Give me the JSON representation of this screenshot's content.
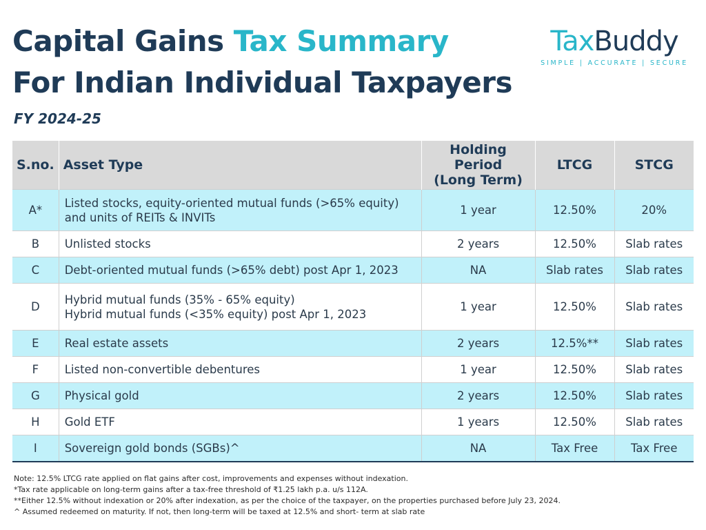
{
  "header": {
    "title_part1": "Capital Gains ",
    "title_accent": "Tax Summary",
    "title_line2": "For Indian Individual Taxpayers",
    "fiscal_year": "FY 2024-25"
  },
  "logo": {
    "brand_prefix": "Tax",
    "brand_suffix": "Buddy",
    "tagline": "SIMPLE | ACCURATE | SECURE"
  },
  "colors": {
    "title": "#1f3b57",
    "accent": "#29b6c9",
    "row_highlight": "#c1f1fa",
    "header_bg": "#d9d9d9"
  },
  "table": {
    "columns": [
      "S.no.",
      "Asset Type",
      "Holding Period\n(Long Term)",
      "LTCG",
      "STCG"
    ],
    "rows": [
      {
        "sno": "A*",
        "asset": "Listed stocks, equity-oriented mutual funds (>65% equity)\nand units of REITs & INVITs",
        "holding": "1 year",
        "ltcg": "12.50%",
        "stcg": "20%"
      },
      {
        "sno": "B",
        "asset": "Unlisted stocks",
        "holding": "2 years",
        "ltcg": "12.50%",
        "stcg": "Slab rates"
      },
      {
        "sno": "C",
        "asset": "Debt-oriented mutual funds (>65% debt) post Apr 1, 2023",
        "holding": "NA",
        "ltcg": "Slab rates",
        "stcg": "Slab rates"
      },
      {
        "sno": "D",
        "asset": "Hybrid mutual funds (35% - 65% equity)\nHybrid mutual funds (<35% equity) post Apr 1, 2023",
        "holding": "1 year",
        "ltcg": "12.50%",
        "stcg": "Slab rates"
      },
      {
        "sno": "E",
        "asset": "Real estate assets",
        "holding": "2 years",
        "ltcg": "12.5%**",
        "stcg": "Slab rates"
      },
      {
        "sno": "F",
        "asset": "Listed non-convertible debentures",
        "holding": "1 year",
        "ltcg": "12.50%",
        "stcg": "Slab rates"
      },
      {
        "sno": "G",
        "asset": "Physical gold",
        "holding": "2 years",
        "ltcg": "12.50%",
        "stcg": "Slab rates"
      },
      {
        "sno": "H",
        "asset": "Gold ETF",
        "holding": "1 years",
        "ltcg": "12.50%",
        "stcg": "Slab rates"
      },
      {
        "sno": "I",
        "asset": "Sovereign gold bonds (SGBs)^",
        "holding": "NA",
        "ltcg": "Tax Free",
        "stcg": "Tax Free"
      }
    ]
  },
  "notes": [
    "Note: 12.5% LTCG rate applied on flat gains after cost, improvements and expenses without indexation.",
    "*Tax rate applicable on long-term gains after a tax-free threshold of ₹1.25 lakh p.a. u/s 112A.",
    "**Either 12.5% without indexation or 20% after indexation, as per the choice of the taxpayer, on the properties purchased before July 23, 2024.",
    "^ Assumed redeemed on maturity. If not, then long-term will be taxed at 12.5% and short- term at slab rate"
  ]
}
